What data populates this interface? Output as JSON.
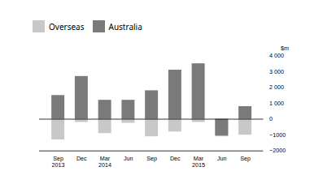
{
  "chart_data": {
    "type": "bar",
    "categories": [
      "Sep\n2013",
      "Dec",
      "Mar\n2014",
      "Jun",
      "Sep",
      "Dec",
      "Mar\n2015",
      "Jun",
      "Sep"
    ],
    "series": [
      {
        "name": "Overseas",
        "color": "#c8c8c8",
        "values": [
          -1300,
          -200,
          -900,
          -250,
          -1100,
          -800,
          -200,
          -1100,
          -1000
        ]
      },
      {
        "name": "Australia",
        "color": "#7a7a7a",
        "values": [
          1500,
          2700,
          1200,
          1200,
          1800,
          3100,
          3500,
          -1050,
          800
        ]
      }
    ],
    "ylabel": "$m",
    "ylim": [
      -2000,
      4000
    ],
    "yticks": [
      {
        "value": -2000,
        "label": "−2000"
      },
      {
        "value": -1000,
        "label": "−1000"
      },
      0,
      {
        "value": 1000,
        "label": "1 000"
      },
      {
        "value": 2000,
        "label": "2 000"
      },
      {
        "value": 3000,
        "label": "3 000"
      },
      {
        "value": 4000,
        "label": "4 000"
      }
    ],
    "stacked": false,
    "grid": false,
    "legend": "upper left"
  }
}
